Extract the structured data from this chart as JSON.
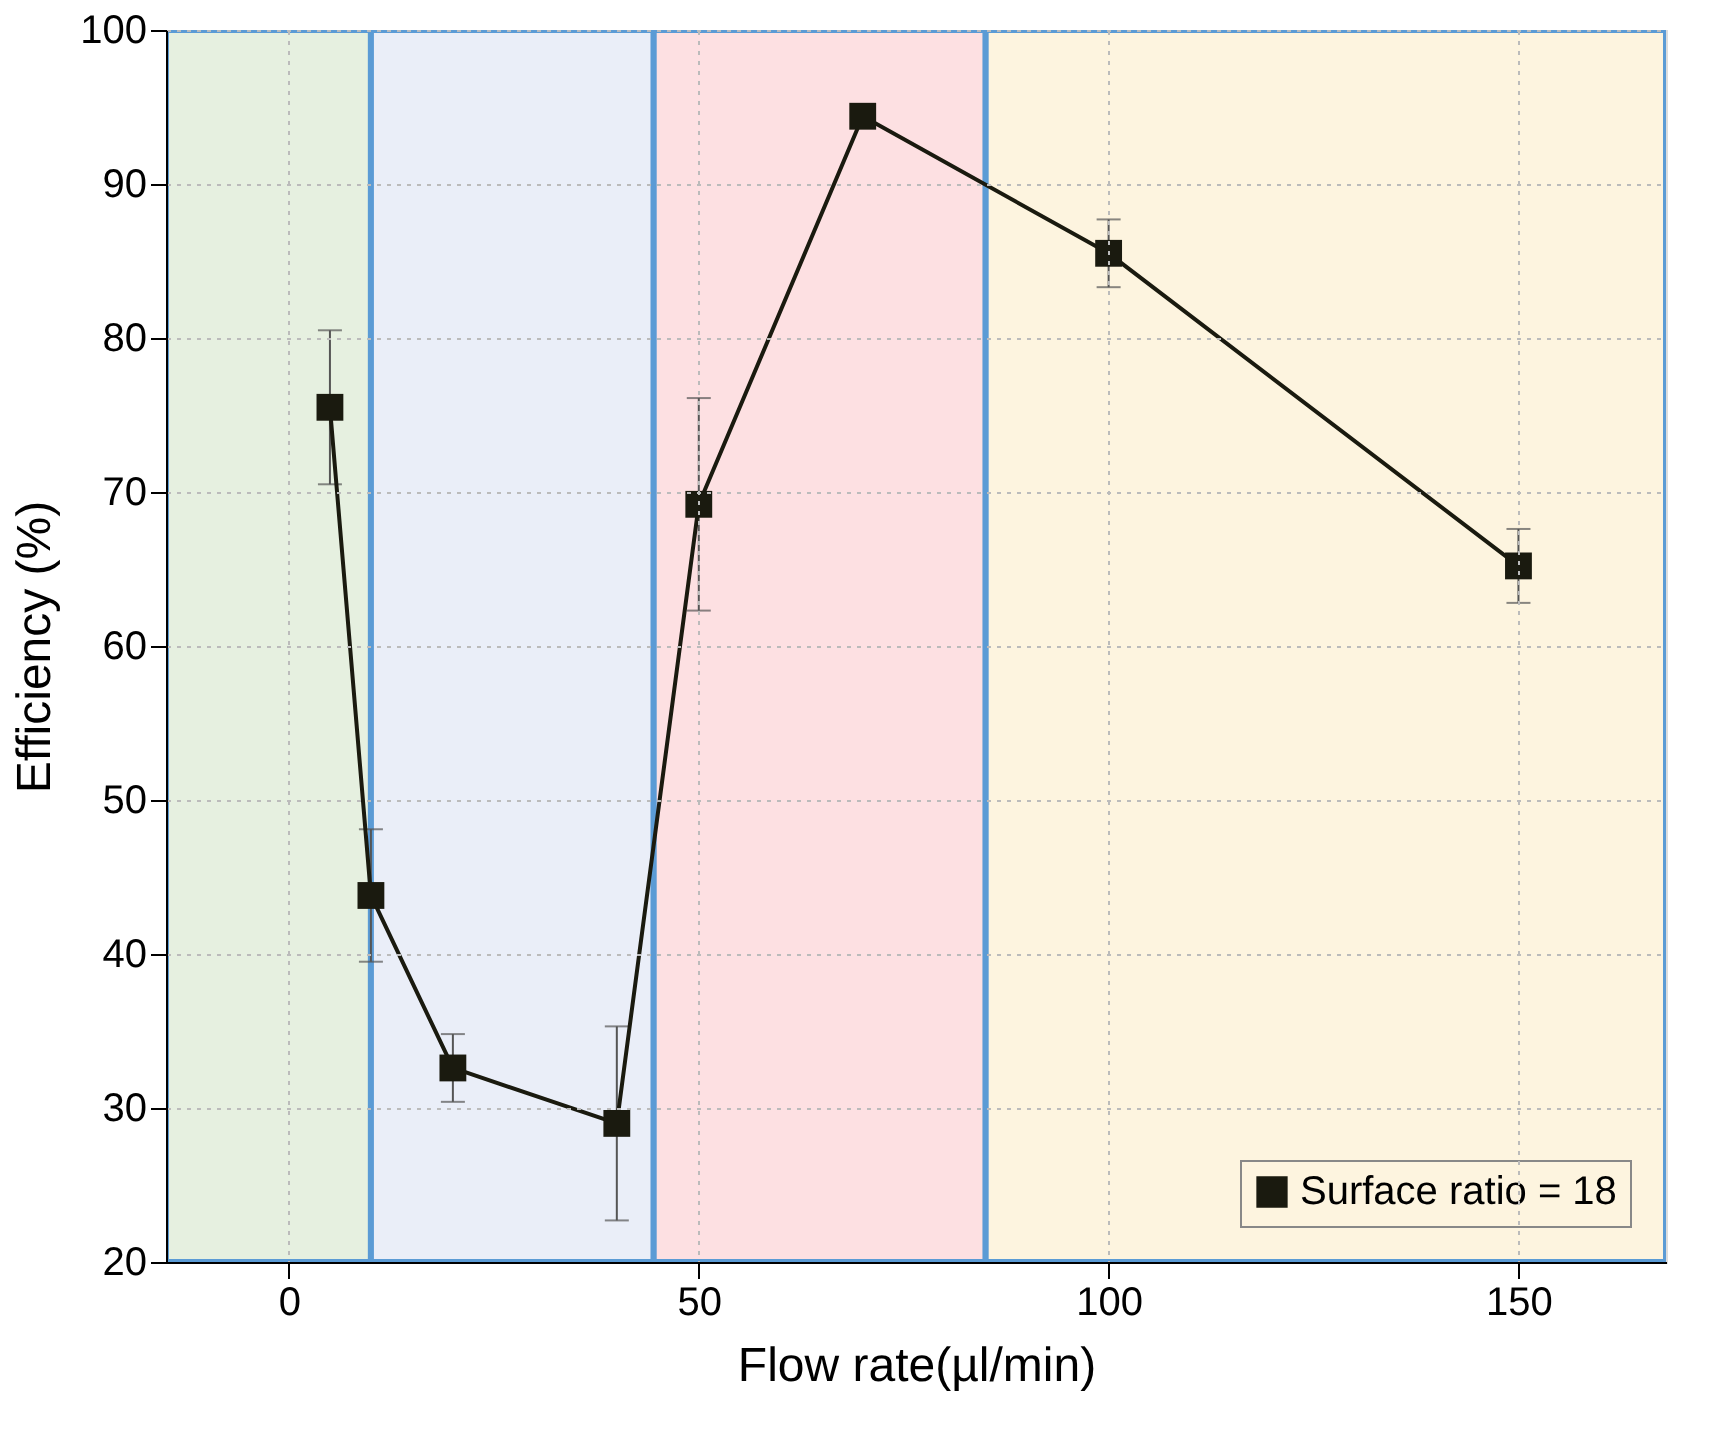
{
  "chart_data": {
    "type": "line",
    "xlabel": "Flow rate(µl/min)",
    "ylabel": "Efficiency (%)",
    "x": [
      5,
      10,
      20,
      40,
      50,
      70,
      100,
      150
    ],
    "series": [
      {
        "name": "Surface ratio = 18",
        "color": "#1a1a0f",
        "values": [
          75.5,
          43.8,
          32.6,
          29.0,
          69.2,
          94.4,
          85.5,
          65.2
        ],
        "errors": [
          5,
          4.3,
          2.2,
          6.3,
          6.9,
          null,
          2.2,
          2.4
        ]
      }
    ],
    "xlim": [
      -15,
      168
    ],
    "xticks": [
      0,
      50,
      100,
      150
    ],
    "ylim": [
      20,
      100
    ],
    "yticks": [
      20,
      30,
      40,
      50,
      60,
      70,
      80,
      90,
      100
    ],
    "bands": [
      {
        "axis": "x",
        "from": -15,
        "to": 10,
        "color": "#e6f0e0"
      },
      {
        "axis": "x",
        "from": 10,
        "to": 44.5,
        "color": "#eaeef8"
      },
      {
        "axis": "x",
        "from": 44.5,
        "to": 85,
        "color": "#fde0e2"
      },
      {
        "axis": "x",
        "from": 85,
        "to": 168,
        "color": "#fdf4df"
      }
    ],
    "grid": true,
    "legend": "bottom right",
    "marker": "square",
    "line_style": "solid"
  }
}
